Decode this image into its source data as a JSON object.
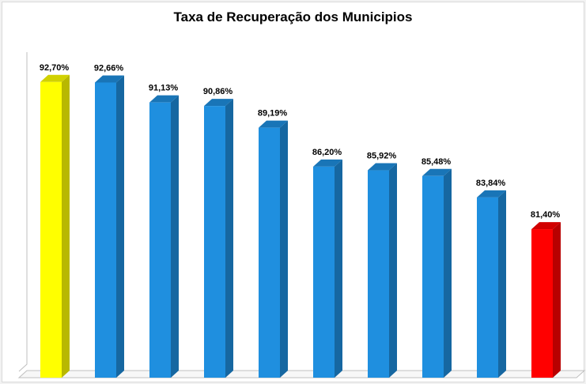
{
  "chart_data": {
    "type": "bar",
    "title": "Taxa de Recuperação dos Municipios",
    "xlabel": "",
    "ylabel": "",
    "ylim": [
      0,
      100
    ],
    "grid": false,
    "values": [
      92.7,
      92.66,
      91.13,
      90.86,
      89.19,
      86.2,
      85.92,
      85.48,
      83.84,
      81.4
    ],
    "value_labels": [
      "92,70%",
      "92,66%",
      "91,13%",
      "90,86%",
      "89,19%",
      "86,20%",
      "85,92%",
      "85,48%",
      "83,84%",
      "81,40%"
    ],
    "colors": [
      "#ffff00",
      "#1f8fdf",
      "#1f8fdf",
      "#1f8fdf",
      "#1f8fdf",
      "#1f8fdf",
      "#1f8fdf",
      "#1f8fdf",
      "#1f8fdf",
      "#ff0000"
    ]
  }
}
